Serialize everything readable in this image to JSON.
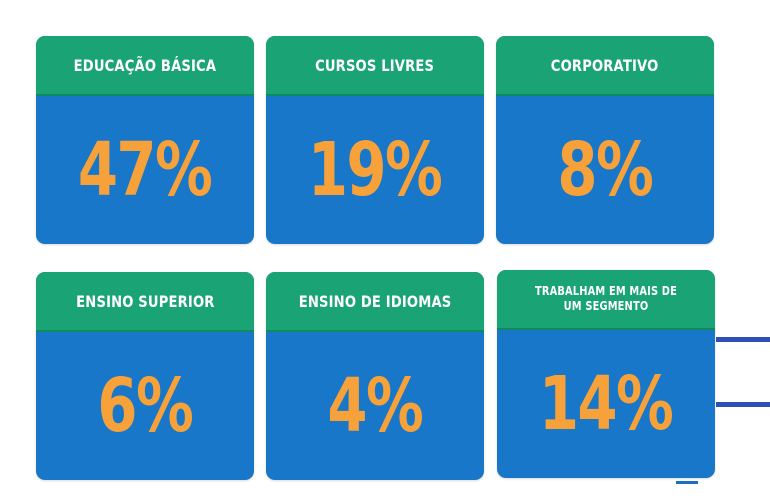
{
  "cards": [
    {
      "label": "EDUCAÇÃO BÁSICA",
      "value": "47%"
    },
    {
      "label": "CURSOS LIVRES",
      "value": "19%"
    },
    {
      "label": "CORPORATIVO",
      "value": "8%"
    },
    {
      "label": "ENSINO SUPERIOR",
      "value": "6%"
    },
    {
      "label": "ENSINO DE IDIOMAS",
      "value": "4%"
    },
    {
      "label": "TRABALHAM EM MAIS DE UM SEGMENTO",
      "value": "14%"
    }
  ],
  "colors": {
    "header": "#1aa374",
    "body": "#1877c9",
    "value": "#f7a13a",
    "accent_lines": "#2e4fb5"
  }
}
